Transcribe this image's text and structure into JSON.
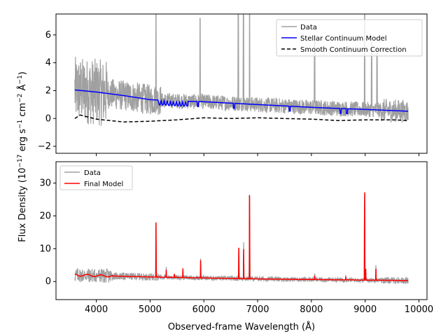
{
  "chart_data": [
    {
      "type": "line",
      "panel": "top",
      "ylim": [
        -2.5,
        7.5
      ],
      "xlim": [
        3250,
        10150
      ],
      "yticks": [
        -2,
        0,
        2,
        4,
        6
      ],
      "ytick_labels": [
        "−2",
        "0",
        "2",
        "4",
        "6"
      ],
      "legend_placement": "top-right",
      "colors": {
        "data": "#a0a0a0",
        "stellar": "#0000ff",
        "smooth": "#000000"
      },
      "series": [
        {
          "name": "Data",
          "style": "solid"
        },
        {
          "name": "Stellar Continuum Model",
          "style": "solid"
        },
        {
          "name": "Smooth Continuum Correction",
          "style": "dashed"
        }
      ],
      "stellar_continuum": {
        "x": [
          3600,
          4000,
          4500,
          5000,
          5500,
          6000,
          6500,
          7000,
          7500,
          8000,
          8500,
          9000,
          9500,
          9800
        ],
        "y": [
          2.05,
          1.9,
          1.65,
          1.35,
          1.25,
          1.2,
          1.1,
          1.0,
          0.9,
          0.8,
          0.72,
          0.65,
          0.57,
          0.52
        ]
      },
      "smooth_correction": {
        "x": [
          3600,
          3700,
          4000,
          4500,
          5000,
          5500,
          6000,
          6500,
          7000,
          7500,
          8000,
          8500,
          9000,
          9500,
          9800
        ],
        "y": [
          0.0,
          0.25,
          -0.05,
          -0.25,
          -0.2,
          -0.1,
          0.05,
          0.0,
          0.05,
          0.0,
          -0.05,
          -0.15,
          -0.1,
          -0.1,
          -0.15
        ]
      },
      "data_spikes": [
        {
          "x": 5110,
          "y": 7.5
        },
        {
          "x": 5930,
          "y": 7.2
        },
        {
          "x": 6640,
          "y": 7.5
        },
        {
          "x": 6735,
          "y": 7.5
        },
        {
          "x": 6850,
          "y": 7.5
        },
        {
          "x": 8060,
          "y": 6.0
        },
        {
          "x": 8990,
          "y": 7.5
        },
        {
          "x": 9120,
          "y": 5.5
        },
        {
          "x": 9220,
          "y": 5.0
        }
      ]
    },
    {
      "type": "line",
      "panel": "bottom",
      "ylim": [
        -5.5,
        36.5
      ],
      "xlim": [
        3250,
        10150
      ],
      "yticks": [
        0,
        10,
        20,
        30
      ],
      "ytick_labels": [
        "0",
        "10",
        "20",
        "30"
      ],
      "xticks": [
        4000,
        5000,
        6000,
        7000,
        8000,
        9000,
        10000
      ],
      "xtick_labels": [
        "4000",
        "5000",
        "6000",
        "7000",
        "8000",
        "9000",
        "10000"
      ],
      "legend_placement": "top-left",
      "colors": {
        "data": "#a0a0a0",
        "final": "#ff0000"
      },
      "series": [
        {
          "name": "Data",
          "style": "solid"
        },
        {
          "name": "Final Model",
          "style": "solid"
        }
      ],
      "emission_lines": [
        {
          "x": 5110,
          "peak": 21.0,
          "data_peak": 22.5
        },
        {
          "x": 5300,
          "peak": 4.0,
          "data_peak": 4.5
        },
        {
          "x": 5450,
          "peak": 2.5,
          "data_peak": 3.0
        },
        {
          "x": 5610,
          "peak": 4.0,
          "data_peak": 4.5
        },
        {
          "x": 5940,
          "peak": 6.5,
          "data_peak": 7.0
        },
        {
          "x": 6650,
          "peak": 12.0,
          "data_peak": 13.0
        },
        {
          "x": 6740,
          "peak": 11.5,
          "data_peak": 12.0
        },
        {
          "x": 6850,
          "peak": 31.0,
          "data_peak": 34.5
        },
        {
          "x": 8060,
          "peak": 2.0,
          "data_peak": 2.5
        },
        {
          "x": 8640,
          "peak": 1.5,
          "data_peak": 2.0
        },
        {
          "x": 8990,
          "peak": 32.0,
          "data_peak": 35.0
        },
        {
          "x": 9010,
          "peak": 4.5,
          "data_peak": 5.0
        },
        {
          "x": 9200,
          "peak": 4.5,
          "data_peak": 5.0
        }
      ]
    }
  ],
  "xlabel": "Observed-frame Wavelength (Å)",
  "ylabel_parts": {
    "pre": "Flux Density (10",
    "exp1": "−17",
    "mid": " erg s",
    "exp2": "−1",
    "mid2": " cm",
    "exp3": "−2",
    "mid3": " Å",
    "exp4": "−1",
    "post": ")"
  }
}
